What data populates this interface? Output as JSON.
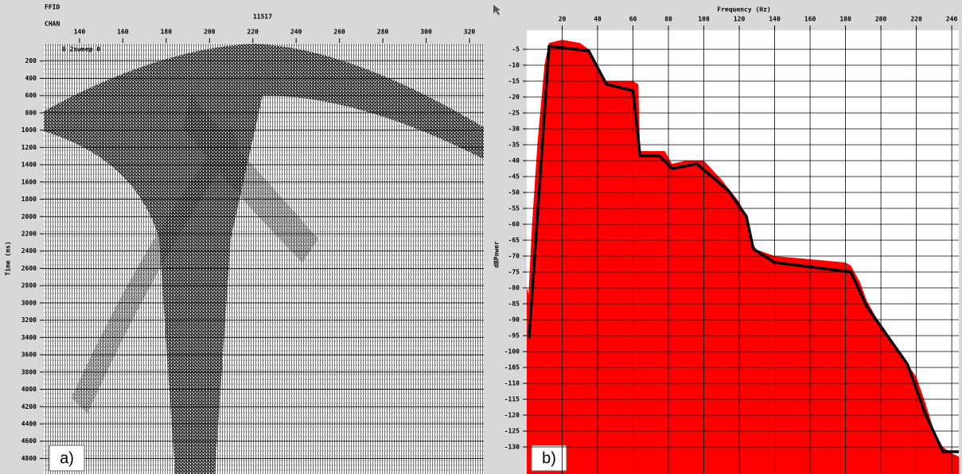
{
  "chart_data": [
    {
      "type": "seismic",
      "header_left_top": "FFID",
      "header_left_bottom": "CHAN",
      "header_center": "11517",
      "inset_label": "0 2sweep 0",
      "ylabel": "Time (ms)",
      "annotation": "a)",
      "xlim": [
        123.5,
        326.6
      ],
      "xticks": [
        140,
        160,
        180,
        200,
        220,
        240,
        260,
        280,
        300,
        320
      ],
      "ylim": [
        0,
        4980
      ],
      "yticks": [
        200,
        400,
        600,
        800,
        1000,
        1200,
        1400,
        1600,
        1800,
        2000,
        2200,
        2400,
        2600,
        2800,
        3000,
        3200,
        3400,
        3600,
        3800,
        4000,
        4200,
        4400,
        4600,
        4800
      ],
      "grid": true
    },
    {
      "type": "line",
      "xlabel": "Frequency (Hz)",
      "ylabel": "dBPower",
      "annotation": "b)",
      "xlim": [
        0,
        244
      ],
      "xticks": [
        20,
        40,
        60,
        80,
        100,
        120,
        140,
        160,
        180,
        200,
        220,
        240
      ],
      "ylim": [
        -138.5,
        1
      ],
      "yticks": [
        -5,
        -10,
        -15,
        -20,
        -25,
        -30,
        -35,
        -40,
        -45,
        -50,
        -55,
        -60,
        -65,
        -70,
        -75,
        -80,
        -85,
        -90,
        -95,
        -100,
        -105,
        -110,
        -115,
        -120,
        -125,
        -130
      ],
      "grid": true,
      "series": [
        {
          "type": "area",
          "color": "#ff0000",
          "x": [
            0,
            1,
            3,
            6,
            10,
            12.6,
            20,
            30,
            35,
            40,
            45,
            55,
            60,
            63,
            64,
            70,
            78,
            82,
            90,
            100,
            110,
            120,
            124,
            127,
            130,
            140,
            160,
            180,
            183,
            188,
            192,
            200,
            210,
            215,
            220,
            225,
            230,
            235,
            240,
            244
          ],
          "values": [
            -80,
            -82,
            -60,
            -35,
            -10,
            -3,
            -2,
            -3,
            -5,
            -10,
            -15,
            -15,
            -15,
            -16,
            -37,
            -37,
            -37,
            -41,
            -40,
            -40,
            -46,
            -53,
            -58,
            -66,
            -68,
            -70,
            -71,
            -72,
            -73,
            -78,
            -84,
            -92,
            -100,
            -104,
            -108,
            -116,
            -125,
            -130,
            -132,
            -133
          ]
        },
        {
          "type": "line",
          "color": "#000000",
          "x": [
            1.3,
            12.6,
            35,
            45,
            60,
            64,
            75,
            82,
            96,
            114,
            124,
            128,
            140,
            183,
            192,
            215,
            225,
            235,
            244
          ],
          "values": [
            -95.8,
            -4,
            -5.5,
            -16,
            -18,
            -38.5,
            -38.5,
            -42.5,
            -41,
            -49.5,
            -57.5,
            -67.8,
            -72,
            -75,
            -85.8,
            -104,
            -119.5,
            -131.5,
            -131.5
          ]
        }
      ]
    }
  ]
}
